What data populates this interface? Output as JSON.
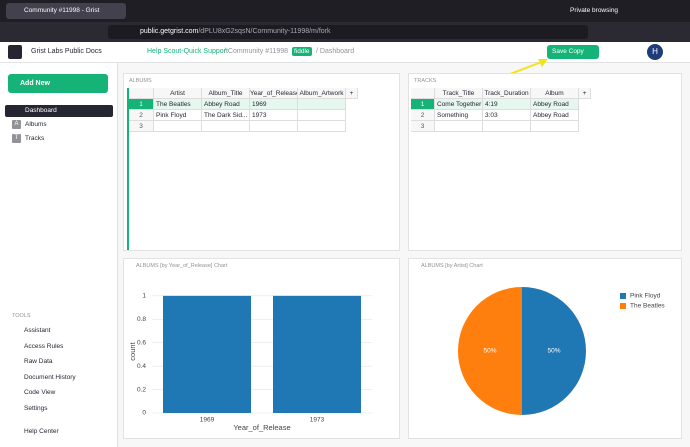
{
  "browser": {
    "tab_title": "Community #11998 - Grist",
    "private_label": "Private browsing",
    "url_host": "public.getgrist.com",
    "url_path": "/dPLU8xG2sqsN/Community-11998/m/fork"
  },
  "header": {
    "org": "Grist Labs Public Docs",
    "workspace": "Help Scout-Quick Support",
    "doc": "/ Community #11998",
    "fork_badge": "fiddle",
    "page": "/ Dashboard",
    "save_button": "Save Copy",
    "avatar": "H"
  },
  "sidebar": {
    "add_new": "Add New",
    "pages": [
      {
        "label": "Dashboard"
      },
      {
        "icon": "A",
        "label": "Albums"
      },
      {
        "icon": "T",
        "label": "Tracks"
      }
    ],
    "tools_heading": "TOOLS",
    "tools": [
      "Assistant",
      "Access Rules",
      "Raw Data",
      "Document History",
      "Code View",
      "Settings"
    ],
    "help": "Help Center"
  },
  "albums_table": {
    "title": "ALBUMS",
    "columns": [
      "Artist",
      "Album_Title",
      "Year_of_Release",
      "Album_Artwork"
    ],
    "add_column": "+",
    "row_numbers": [
      1,
      2,
      3
    ],
    "rows": [
      [
        "The Beatles",
        "Abbey Road",
        1969
      ],
      [
        "Pink Floyd",
        "The Dark Sid...",
        1973
      ]
    ]
  },
  "tracks_table": {
    "title": "TRACKS",
    "columns": [
      "Track_Title",
      "Track_Duration",
      "Album"
    ],
    "add_column": "+",
    "row_numbers": [
      1,
      2,
      3
    ],
    "rows": [
      [
        "Come Together",
        "4:19",
        "Abbey Road"
      ],
      [
        "Something",
        "3:03",
        "Abbey Road"
      ]
    ]
  },
  "chart_data": [
    {
      "type": "bar",
      "title": "ALBUMS [by Year_of_Release] Chart",
      "x_label": "Year_of_Release",
      "y_label": "count",
      "categories": [
        "1969",
        "1973"
      ],
      "values": [
        1,
        1
      ],
      "color": "#1f77b4",
      "ylim": [
        0,
        1.05
      ],
      "yticks": [
        0,
        0.2,
        0.4,
        0.6,
        0.8,
        1
      ],
      "grid": true
    },
    {
      "type": "pie",
      "title": "ALBUMS [by Artist] Chart",
      "categories": [
        "Pink Floyd",
        "The Beatles"
      ],
      "values": [
        50,
        50
      ],
      "value_labels": [
        "50%",
        "50%"
      ],
      "colors": [
        "#1f77b4",
        "#ff7f0e"
      ],
      "legend": "top-right"
    }
  ]
}
